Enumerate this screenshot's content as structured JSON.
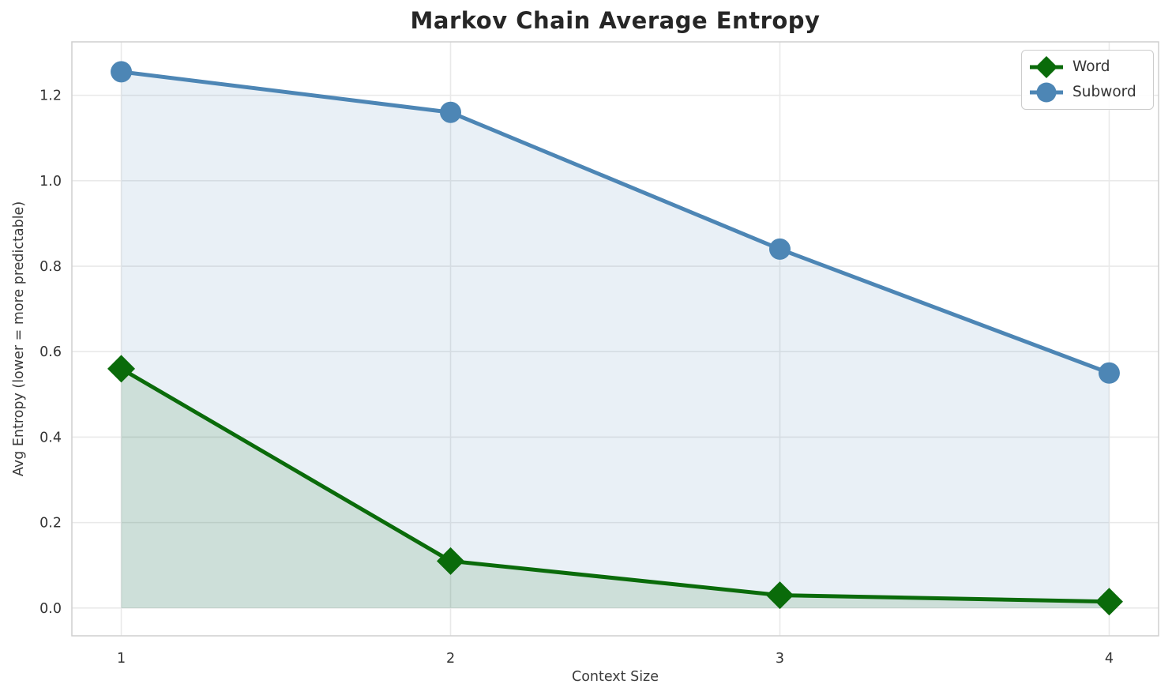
{
  "chart_data": {
    "type": "line",
    "title": "Markov Chain Average Entropy",
    "xlabel": "Context Size",
    "ylabel": "Avg Entropy (lower = more predictable)",
    "x": [
      1,
      2,
      3,
      4
    ],
    "series": [
      {
        "name": "Word",
        "values": [
          0.56,
          0.11,
          0.03,
          0.015
        ],
        "color": "#0a6b0a",
        "marker": "diamond",
        "fill_to_zero": true,
        "fill_opacity": 0.12
      },
      {
        "name": "Subword",
        "values": [
          1.255,
          1.16,
          0.84,
          0.55
        ],
        "color": "#4d86b5",
        "marker": "circle",
        "fill_to_zero": true,
        "fill_opacity": 0.12
      }
    ],
    "xlim": [
      0.85,
      4.15
    ],
    "ylim": [
      -0.065,
      1.325
    ],
    "xticks": {
      "values": [
        1,
        2,
        3,
        4
      ],
      "labels": [
        "1",
        "2",
        "3",
        "4"
      ]
    },
    "yticks": {
      "values": [
        0.0,
        0.2,
        0.4,
        0.6,
        0.8,
        1.0,
        1.2
      ],
      "labels": [
        "0.0",
        "0.2",
        "0.4",
        "0.6",
        "0.8",
        "1.0",
        "1.2"
      ]
    },
    "grid": true,
    "grid_color": "#e9e9e9",
    "spine_color": "#cfcfcf",
    "tick_label_color": "#333333",
    "legend": {
      "position": "upper right",
      "entries": [
        "Word",
        "Subword"
      ]
    }
  }
}
